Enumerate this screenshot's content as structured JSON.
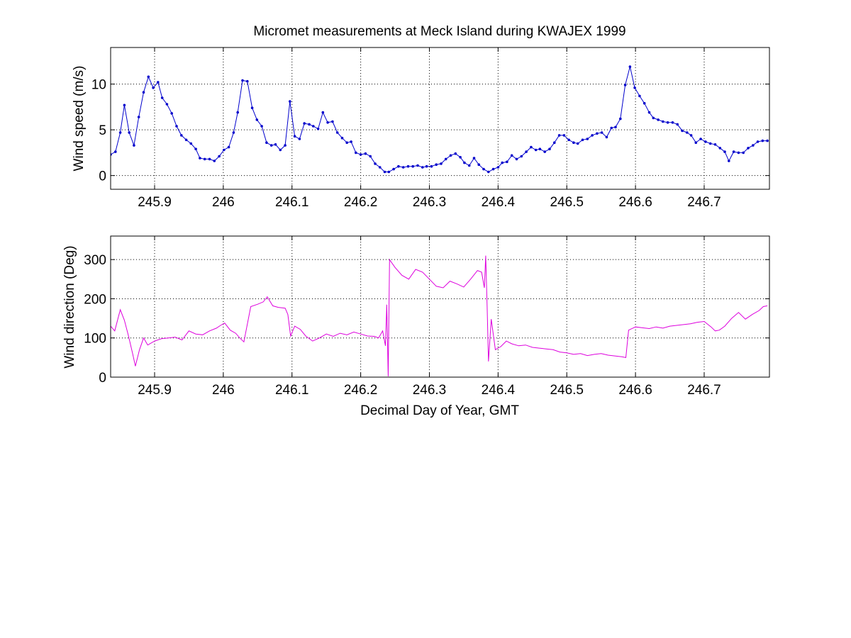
{
  "figure": {
    "title": "Micromet measurements at Meck Island during KWAJEX 1999"
  },
  "chart_data": [
    {
      "type": "line",
      "panel": "top",
      "title": "Micromet measurements at Meck Island during KWAJEX 1999",
      "xlabel": "",
      "ylabel": "Wind speed (m/s)",
      "xlim": [
        245.836,
        246.795
      ],
      "ylim": [
        -1.5,
        14
      ],
      "xticks": [
        245.9,
        246,
        246.1,
        246.2,
        246.3,
        246.4,
        246.5,
        246.6,
        246.7
      ],
      "xtick_labels": [
        "245.9",
        "246",
        "246.1",
        "246.2",
        "246.3",
        "246.4",
        "246.5",
        "246.6",
        "246.7"
      ],
      "yticks": [
        0,
        5,
        10
      ],
      "ytick_labels": [
        "0",
        "5",
        "10"
      ],
      "grid": true,
      "marker": true,
      "series": [
        {
          "color": "#0000cc",
          "x": [
            245.836,
            245.843,
            245.85,
            245.856,
            245.863,
            245.87,
            245.877,
            245.884,
            245.891,
            245.898,
            245.905,
            245.911,
            245.918,
            245.925,
            245.932,
            245.939,
            245.946,
            245.953,
            245.96,
            245.966,
            245.973,
            245.98,
            245.987,
            245.994,
            246.001,
            246.008,
            246.015,
            246.021,
            246.028,
            246.035,
            246.042,
            246.049,
            246.056,
            246.063,
            246.07,
            246.076,
            246.083,
            246.09,
            246.097,
            246.104,
            246.111,
            246.118,
            246.125,
            246.131,
            246.138,
            246.145,
            246.152,
            246.159,
            246.166,
            246.173,
            246.18,
            246.186,
            246.193,
            246.2,
            246.207,
            246.214,
            246.221,
            246.228,
            246.235,
            246.241,
            246.248,
            246.255,
            246.262,
            246.269,
            246.276,
            246.283,
            246.29,
            246.296,
            246.303,
            246.31,
            246.317,
            246.324,
            246.331,
            246.338,
            246.345,
            246.351,
            246.358,
            246.365,
            246.372,
            246.379,
            246.386,
            246.393,
            246.4,
            246.406,
            246.413,
            246.42,
            246.427,
            246.434,
            246.441,
            246.448,
            246.455,
            246.461,
            246.468,
            246.475,
            246.482,
            246.489,
            246.496,
            246.503,
            246.51,
            246.516,
            246.523,
            246.53,
            246.537,
            246.544,
            246.551,
            246.558,
            246.565,
            246.571,
            246.578,
            246.585,
            246.592,
            246.599,
            246.606,
            246.613,
            246.62,
            246.626,
            246.633,
            246.64,
            246.647,
            246.654,
            246.661,
            246.668,
            246.675,
            246.681,
            246.688,
            246.695,
            246.702,
            246.709,
            246.716,
            246.723,
            246.73,
            246.736,
            246.743,
            246.75,
            246.757,
            246.764,
            246.771,
            246.778,
            246.785,
            246.792
          ],
          "values": [
            2.3,
            2.6,
            4.7,
            7.7,
            4.7,
            3.3,
            6.4,
            9.1,
            10.8,
            9.6,
            10.2,
            8.5,
            7.8,
            6.8,
            5.4,
            4.4,
            3.9,
            3.5,
            2.9,
            1.9,
            1.8,
            1.8,
            1.6,
            2.1,
            2.8,
            3.1,
            4.7,
            6.9,
            10.4,
            10.3,
            7.4,
            6.1,
            5.4,
            3.6,
            3.3,
            3.4,
            2.8,
            3.3,
            8.1,
            4.3,
            4.0,
            5.7,
            5.6,
            5.4,
            5.1,
            6.9,
            5.8,
            5.9,
            4.7,
            4.1,
            3.6,
            3.7,
            2.5,
            2.3,
            2.4,
            2.1,
            1.3,
            0.9,
            0.4,
            0.4,
            0.7,
            1.0,
            0.9,
            1.0,
            1.0,
            1.1,
            0.9,
            1.0,
            1.0,
            1.2,
            1.3,
            1.8,
            2.2,
            2.4,
            2.0,
            1.4,
            1.1,
            1.9,
            1.2,
            0.7,
            0.4,
            0.7,
            0.9,
            1.4,
            1.5,
            2.2,
            1.8,
            2.1,
            2.6,
            3.1,
            2.8,
            2.9,
            2.6,
            2.9,
            3.6,
            4.4,
            4.4,
            3.9,
            3.6,
            3.5,
            3.9,
            4.0,
            4.4,
            4.6,
            4.7,
            4.2,
            5.2,
            5.3,
            6.2,
            9.9,
            11.9,
            9.6,
            8.7,
            7.9,
            6.9,
            6.3,
            6.1,
            5.9,
            5.8,
            5.8,
            5.6,
            4.9,
            4.7,
            4.4,
            3.6,
            4.0,
            3.7,
            3.5,
            3.4,
            3.0,
            2.6,
            1.6,
            2.6,
            2.5,
            2.5,
            3.0,
            3.3,
            3.7,
            3.8,
            3.8
          ]
        }
      ]
    },
    {
      "type": "line",
      "panel": "bottom",
      "title": "",
      "xlabel": "Decimal Day of Year, GMT",
      "ylabel": "Wind direction (Deg)",
      "xlim": [
        245.836,
        246.795
      ],
      "ylim": [
        0,
        360
      ],
      "xticks": [
        245.9,
        246,
        246.1,
        246.2,
        246.3,
        246.4,
        246.5,
        246.6,
        246.7
      ],
      "xtick_labels": [
        "245.9",
        "246",
        "246.1",
        "246.2",
        "246.3",
        "246.4",
        "246.5",
        "246.6",
        "246.7"
      ],
      "yticks": [
        0,
        100,
        200,
        300
      ],
      "ytick_labels": [
        "0",
        "100",
        "200",
        "300"
      ],
      "grid": true,
      "marker": false,
      "series": [
        {
          "color": "#dd00dd",
          "x": [
            245.836,
            245.842,
            245.85,
            245.856,
            245.862,
            245.868,
            245.872,
            245.878,
            245.884,
            245.89,
            245.9,
            245.91,
            245.92,
            245.93,
            245.94,
            245.95,
            245.96,
            245.97,
            245.98,
            245.99,
            245.996,
            246.002,
            246.01,
            246.018,
            246.024,
            246.03,
            246.04,
            246.05,
            246.058,
            246.064,
            246.072,
            246.08,
            246.09,
            246.094,
            246.098,
            246.104,
            246.112,
            246.12,
            246.13,
            246.14,
            246.15,
            246.16,
            246.17,
            246.18,
            246.19,
            246.2,
            246.21,
            246.22,
            246.226,
            246.232,
            246.236,
            246.238,
            246.24,
            246.242,
            246.244,
            246.25,
            246.26,
            246.27,
            246.28,
            246.29,
            246.3,
            246.31,
            246.32,
            246.33,
            246.34,
            246.35,
            246.36,
            246.37,
            246.376,
            246.38,
            246.382,
            246.384,
            246.386,
            246.39,
            246.396,
            246.404,
            246.412,
            246.42,
            246.43,
            246.44,
            246.45,
            246.46,
            246.47,
            246.48,
            246.49,
            246.5,
            246.51,
            246.52,
            246.53,
            246.54,
            246.55,
            246.56,
            246.57,
            246.58,
            246.586,
            246.59,
            246.6,
            246.61,
            246.62,
            246.63,
            246.64,
            246.65,
            246.66,
            246.67,
            246.68,
            246.69,
            246.7,
            246.71,
            246.716,
            246.722,
            246.73,
            246.74,
            246.75,
            246.76,
            246.77,
            246.78,
            246.786,
            246.792
          ],
          "values": [
            130,
            118,
            172,
            145,
            105,
            60,
            28,
            70,
            100,
            82,
            92,
            98,
            100,
            102,
            95,
            118,
            110,
            108,
            118,
            125,
            132,
            138,
            120,
            112,
            100,
            90,
            180,
            186,
            192,
            205,
            182,
            178,
            176,
            160,
            105,
            130,
            122,
            105,
            92,
            100,
            110,
            104,
            112,
            108,
            115,
            110,
            105,
            104,
            100,
            118,
            80,
            185,
            2,
            300,
            295,
            280,
            260,
            250,
            275,
            268,
            250,
            232,
            228,
            245,
            238,
            230,
            250,
            272,
            268,
            228,
            310,
            180,
            40,
            148,
            70,
            78,
            92,
            85,
            80,
            82,
            76,
            74,
            72,
            70,
            64,
            62,
            58,
            60,
            55,
            58,
            60,
            56,
            54,
            52,
            50,
            120,
            128,
            126,
            124,
            128,
            125,
            130,
            132,
            134,
            136,
            140,
            142,
            128,
            118,
            120,
            130,
            150,
            165,
            148,
            160,
            170,
            180,
            182
          ]
        }
      ]
    }
  ]
}
